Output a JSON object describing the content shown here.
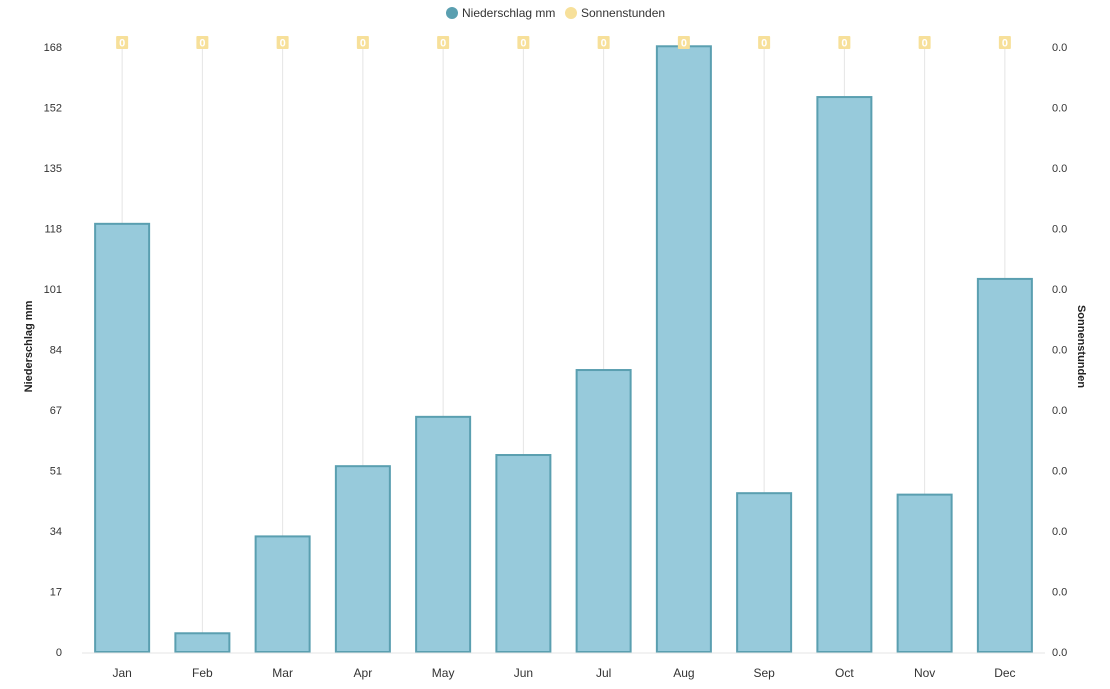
{
  "legend": {
    "items": [
      {
        "label": "Niederschlag mm",
        "color": "#5a9fb0"
      },
      {
        "label": "Sonnenstunden",
        "color": "#f7e09a"
      }
    ]
  },
  "colors": {
    "bar_fill": "#97cadb",
    "bar_stroke": "#5a9fb0",
    "sun_fill": "#f7e09a",
    "sun_line": "#e4e4e4",
    "axis": "#e4e4e4"
  },
  "chart_data": {
    "type": "bar",
    "categories": [
      "Jan",
      "Feb",
      "Mar",
      "Apr",
      "May",
      "Jun",
      "Jul",
      "Aug",
      "Sep",
      "Oct",
      "Nov",
      "Dec"
    ],
    "series": [
      {
        "name": "Niederschlag mm",
        "type": "bar",
        "axis": "left",
        "values": [
          118.9,
          5.2,
          32.1,
          51.6,
          65.3,
          54.7,
          78.3,
          168.2,
          44.1,
          154.1,
          43.7,
          103.6
        ]
      },
      {
        "name": "Sonnenstunden",
        "type": "line",
        "axis": "right",
        "values": [
          0,
          0,
          0,
          0,
          0,
          0,
          0,
          0,
          0,
          0,
          0,
          0
        ],
        "labels": [
          "0",
          "0",
          "0",
          "0",
          "0",
          "0",
          "0",
          "0",
          "0",
          "0",
          "0",
          "0"
        ]
      }
    ],
    "y_left": {
      "label": "Niederschlag mm",
      "range": [
        0,
        168
      ],
      "ticks": [
        "0",
        "17",
        "34",
        "51",
        "67",
        "84",
        "101",
        "118",
        "135",
        "152",
        "168"
      ]
    },
    "y_right": {
      "label": "Sonnenstunden",
      "ticks": [
        "0.0",
        "0.0",
        "0.0",
        "0.0",
        "0.0",
        "0.0",
        "0.0",
        "0.0",
        "0.0",
        "0.0",
        "0.0"
      ]
    },
    "grid": false,
    "legend_position": "top-center"
  }
}
